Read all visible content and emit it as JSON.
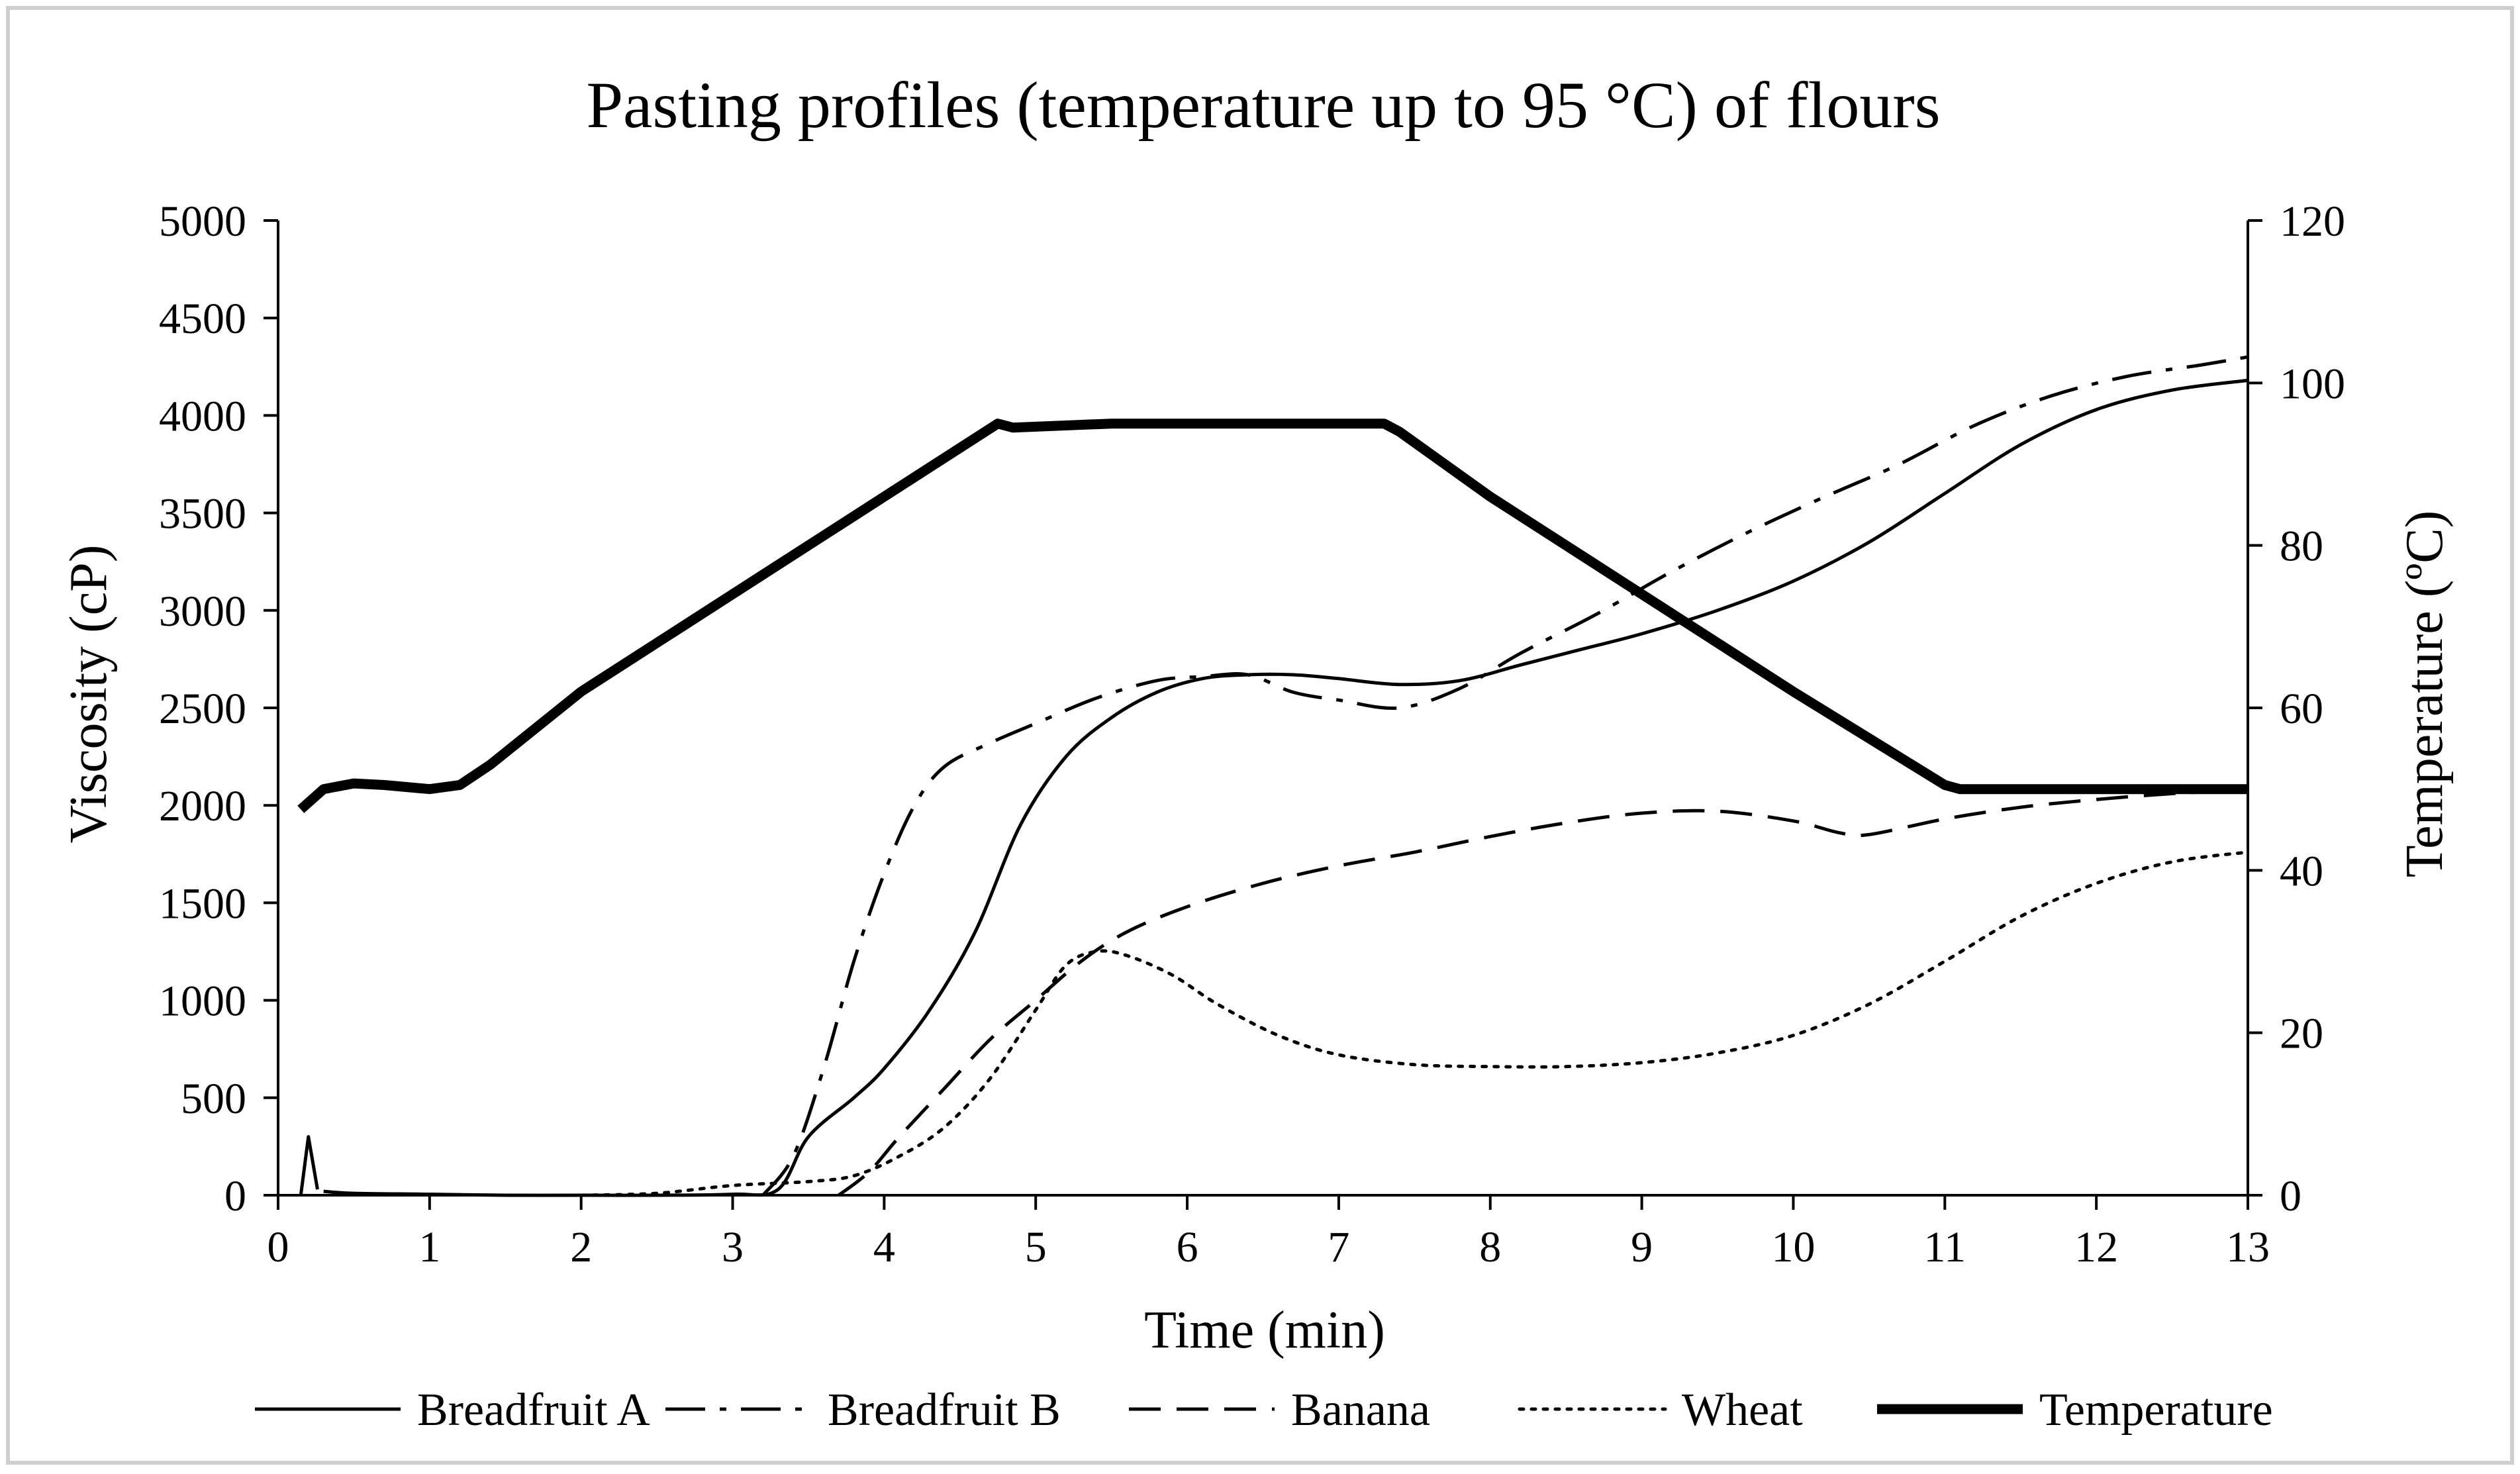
{
  "chart_data": {
    "type": "line",
    "title": "Pasting profiles (temperature up to 95 °C) of flours",
    "xlabel": "Time (min)",
    "ylabel": "Viscosity (cP)",
    "y2label": "Temperature (ºC)",
    "xlim": [
      0,
      13
    ],
    "ylim": [
      0,
      5000
    ],
    "y2lim": [
      0,
      120
    ],
    "xticks": [
      0,
      1,
      2,
      3,
      4,
      5,
      6,
      7,
      8,
      9,
      10,
      11,
      12,
      13
    ],
    "yticks": [
      0,
      500,
      1000,
      1500,
      2000,
      2500,
      3000,
      3500,
      4000,
      4500,
      5000
    ],
    "y2ticks": [
      0,
      20,
      40,
      60,
      80,
      100,
      120
    ],
    "legend_position": "bottom",
    "series": [
      {
        "name": "Breadfruit A",
        "axis": "left",
        "style": "solid",
        "x": [
          0.3,
          0.5,
          1.0,
          1.5,
          2.0,
          2.5,
          3.0,
          3.3,
          3.5,
          3.8,
          4.0,
          4.3,
          4.6,
          4.9,
          5.2,
          5.5,
          5.8,
          6.1,
          6.4,
          6.7,
          7.0,
          7.4,
          7.8,
          8.2,
          8.6,
          9.0,
          9.5,
          10.0,
          10.5,
          11.0,
          11.5,
          12.0,
          12.5,
          13.0
        ],
        "values": [
          20,
          10,
          5,
          0,
          0,
          0,
          5,
          30,
          300,
          500,
          650,
          950,
          1350,
          1900,
          2250,
          2450,
          2580,
          2650,
          2670,
          2670,
          2650,
          2620,
          2640,
          2720,
          2800,
          2880,
          3000,
          3150,
          3350,
          3600,
          3850,
          4030,
          4130,
          4180
        ]
      },
      {
        "name": "Breadfruit B",
        "axis": "left",
        "style": "dashdot",
        "x": [
          3.2,
          3.4,
          3.6,
          3.8,
          4.0,
          4.2,
          4.4,
          4.7,
          5.0,
          5.4,
          5.8,
          6.1,
          6.4,
          6.7,
          7.0,
          7.4,
          7.8,
          8.2,
          8.7,
          9.2,
          9.7,
          10.2,
          10.7,
          11.2,
          11.7,
          12.2,
          12.7,
          13.0
        ],
        "values": [
          0,
          200,
          650,
          1200,
          1650,
          2000,
          2200,
          2320,
          2420,
          2550,
          2640,
          2660,
          2670,
          2580,
          2540,
          2500,
          2600,
          2780,
          2980,
          3200,
          3400,
          3580,
          3750,
          3950,
          4100,
          4200,
          4260,
          4300
        ]
      },
      {
        "name": "Banana",
        "axis": "left",
        "style": "dashed",
        "x": [
          3.7,
          3.9,
          4.1,
          4.4,
          4.7,
          5.0,
          5.3,
          5.6,
          6.0,
          6.5,
          7.0,
          7.5,
          8.0,
          8.5,
          9.0,
          9.5,
          10.0,
          10.3,
          10.5,
          11.0,
          11.5,
          12.0,
          12.5,
          13.0
        ],
        "values": [
          0,
          120,
          300,
          550,
          800,
          1000,
          1200,
          1350,
          1480,
          1600,
          1690,
          1760,
          1840,
          1910,
          1960,
          1970,
          1920,
          1860,
          1850,
          1930,
          1990,
          2030,
          2060,
          2080
        ]
      },
      {
        "name": "Wheat",
        "axis": "left",
        "style": "dotted",
        "x": [
          2.0,
          2.5,
          3.0,
          3.5,
          3.8,
          4.1,
          4.4,
          4.7,
          5.0,
          5.2,
          5.4,
          5.6,
          5.9,
          6.2,
          6.6,
          7.0,
          7.5,
          8.0,
          8.5,
          9.0,
          9.5,
          10.0,
          10.5,
          11.0,
          11.5,
          12.0,
          12.5,
          13.0
        ],
        "values": [
          0,
          10,
          50,
          70,
          100,
          200,
          350,
          600,
          950,
          1180,
          1250,
          1230,
          1130,
          980,
          820,
          720,
          670,
          660,
          660,
          680,
          730,
          820,
          980,
          1200,
          1430,
          1600,
          1710,
          1760
        ]
      },
      {
        "name": "Temperature",
        "axis": "right",
        "style": "thick",
        "x": [
          0.15,
          0.3,
          0.5,
          0.7,
          1.0,
          1.2,
          1.4,
          2.0,
          3.0,
          4.0,
          4.75,
          4.85,
          5.5,
          6.5,
          7.3,
          7.4,
          8.0,
          9.0,
          10.0,
          11.0,
          11.1,
          12.0,
          13.0
        ],
        "values": [
          47.5,
          50,
          50.7,
          50.5,
          50,
          50.5,
          53,
          62,
          74,
          86,
          95,
          94.5,
          95,
          95,
          95,
          94,
          86,
          74,
          62,
          50.5,
          50,
          50,
          50
        ]
      }
    ],
    "annotations": [
      {
        "note": "initial spike near start",
        "x": 0.2,
        "value": 300
      }
    ],
    "colors": {
      "line": "#000000",
      "background": "#ffffff",
      "frame": "#cfcfcf"
    }
  }
}
